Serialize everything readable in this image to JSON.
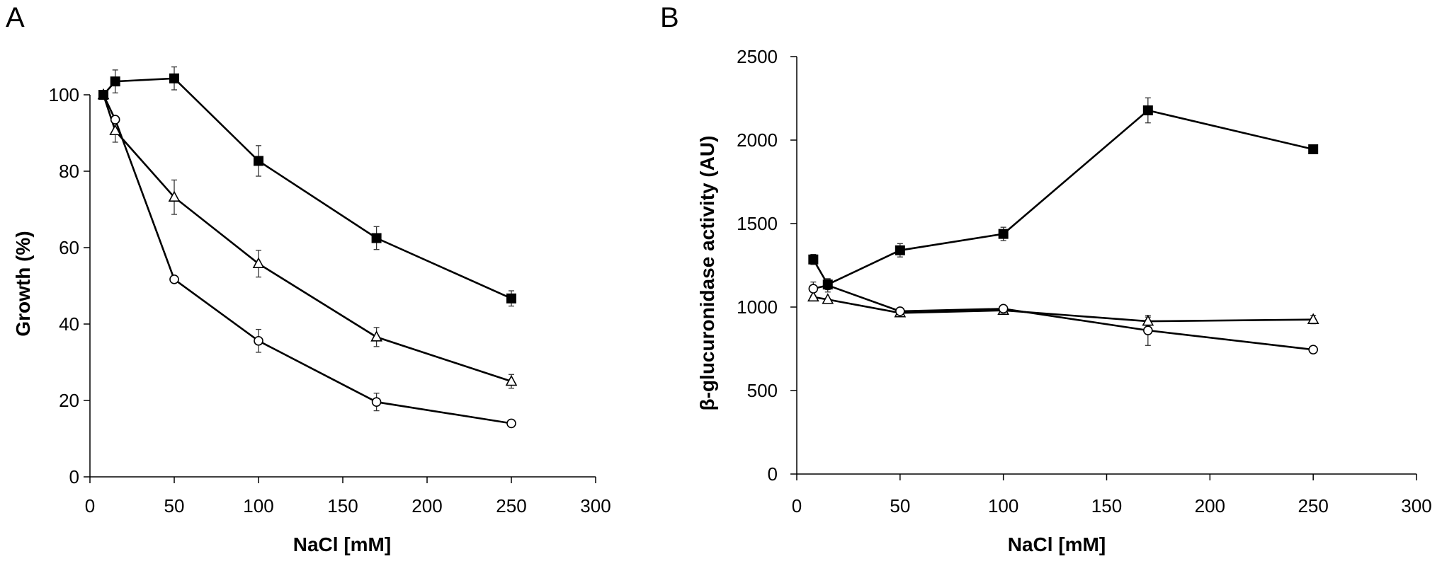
{
  "chart_data": [
    {
      "type": "line",
      "panel_label": "A",
      "xlabel": "NaCl [mM]",
      "ylabel": "Growth (%)",
      "xlim": [
        0,
        300
      ],
      "ylim": [
        0,
        110
      ],
      "xticks": [
        0,
        50,
        100,
        150,
        200,
        250,
        300
      ],
      "yticks": [
        0,
        20,
        40,
        60,
        80,
        100
      ],
      "grid": false,
      "legend": "none",
      "series": [
        {
          "marker": "filled-square",
          "x": [
            8,
            15,
            50,
            100,
            170,
            250
          ],
          "y": [
            100,
            103.5,
            104.3,
            82.7,
            62.5,
            46.7
          ],
          "err": [
            0,
            3,
            3,
            4,
            3,
            2
          ]
        },
        {
          "marker": "open-triangle",
          "x": [
            8,
            15,
            50,
            100,
            170,
            250
          ],
          "y": [
            100,
            90.6,
            73.2,
            55.8,
            36.6,
            25.0
          ],
          "err": [
            0,
            3,
            4.5,
            3.5,
            2.5,
            1.8
          ]
        },
        {
          "marker": "open-circle",
          "x": [
            8,
            15,
            50,
            100,
            170,
            250
          ],
          "y": [
            100,
            93.5,
            51.7,
            35.6,
            19.6,
            14.0
          ],
          "err": [
            0,
            0,
            0,
            3,
            2.3,
            0
          ]
        }
      ]
    },
    {
      "type": "line",
      "panel_label": "B",
      "xlabel": "NaCl [mM]",
      "ylabel": "β-glucuronidase  activity (AU)",
      "xlim": [
        0,
        300
      ],
      "ylim": [
        0,
        2500
      ],
      "xticks": [
        0,
        50,
        100,
        150,
        200,
        250,
        300
      ],
      "yticks": [
        0,
        500,
        1000,
        1500,
        2000,
        2500
      ],
      "grid": false,
      "legend": "none",
      "series": [
        {
          "marker": "filled-square",
          "x": [
            8,
            15,
            50,
            100,
            170,
            250
          ],
          "y": [
            1285,
            1135,
            1340,
            1438,
            2178,
            1945
          ],
          "err": [
            30,
            30,
            40,
            40,
            75,
            25
          ]
        },
        {
          "marker": "open-circle",
          "x": [
            8,
            15,
            50,
            100,
            170,
            250
          ],
          "y": [
            1110,
            1130,
            975,
            990,
            860,
            745
          ],
          "err": [
            40,
            40,
            15,
            15,
            90,
            0
          ]
        },
        {
          "marker": "open-triangle",
          "x": [
            8,
            15,
            50,
            100,
            170,
            250
          ],
          "y": [
            1060,
            1045,
            965,
            980,
            915,
            925
          ],
          "err": [
            0,
            0,
            0,
            15,
            25,
            25
          ]
        }
      ]
    }
  ]
}
